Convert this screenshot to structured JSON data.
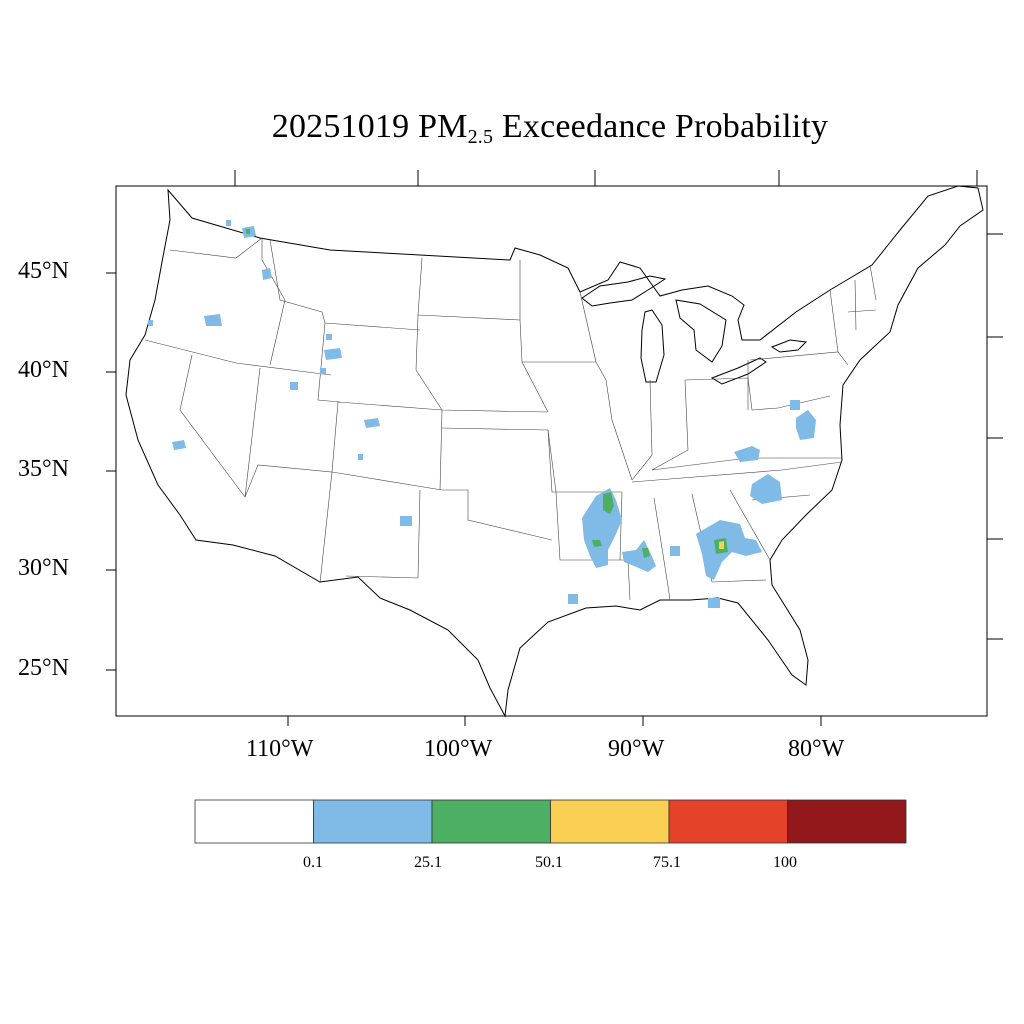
{
  "title": {
    "date": "20251019",
    "species_main": "PM",
    "species_sub": "2.5",
    "rest": "Exceedance Probability"
  },
  "axes": {
    "lat_labels": [
      "45°N",
      "40°N",
      "35°N",
      "30°N",
      "25°N"
    ],
    "lon_labels": [
      "110°W",
      "100°W",
      "90°W",
      "80°W"
    ]
  },
  "colorbar": {
    "colors": [
      "#ffffff",
      "#7fbbe6",
      "#4caf63",
      "#f9d054",
      "#e4432a",
      "#93181c"
    ],
    "tick_labels": [
      "0.1",
      "25.1",
      "50.1",
      "75.1",
      "100"
    ]
  },
  "map_data": {
    "projection": "lambert-conformal",
    "region": "CONUS",
    "legend_placement": "bottom",
    "features": [
      "coastlines",
      "state-boundaries",
      "country-borders",
      "great-lakes"
    ],
    "probability_areas": [
      {
        "location": "Mississippi River valley (AR/MS/LA)",
        "level": "0.1-25.1"
      },
      {
        "location": "Mississippi River valley (AR/MS/LA)",
        "level": "25.1-50.1"
      },
      {
        "location": "Southern Alabama / Georgia",
        "level": "0.1-25.1"
      },
      {
        "location": "Southern Alabama / Georgia",
        "level": "25.1-50.1"
      },
      {
        "location": "Southern Alabama / Georgia",
        "level": "50.1-75.1"
      },
      {
        "location": "Central South Carolina",
        "level": "0.1-25.1"
      },
      {
        "location": "Eastern Tennessee",
        "level": "0.1-25.1"
      },
      {
        "location": "Virginia / Chesapeake",
        "level": "0.1-25.1"
      },
      {
        "location": "Louisiana coast",
        "level": "0.1-25.1"
      },
      {
        "location": "Florida panhandle",
        "level": "0.1-25.1"
      },
      {
        "location": "Washington",
        "level": "0.1-25.1"
      },
      {
        "location": "Washington",
        "level": "25.1-50.1"
      },
      {
        "location": "Northern Idaho",
        "level": "0.1-25.1"
      },
      {
        "location": "Oregon",
        "level": "0.1-25.1"
      },
      {
        "location": "Wyoming",
        "level": "0.1-25.1"
      },
      {
        "location": "Colorado",
        "level": "0.1-25.1"
      },
      {
        "location": "Eastern New Mexico",
        "level": "0.1-25.1"
      },
      {
        "location": "California",
        "level": "0.1-25.1"
      },
      {
        "location": "Utah",
        "level": "0.1-25.1"
      }
    ]
  }
}
